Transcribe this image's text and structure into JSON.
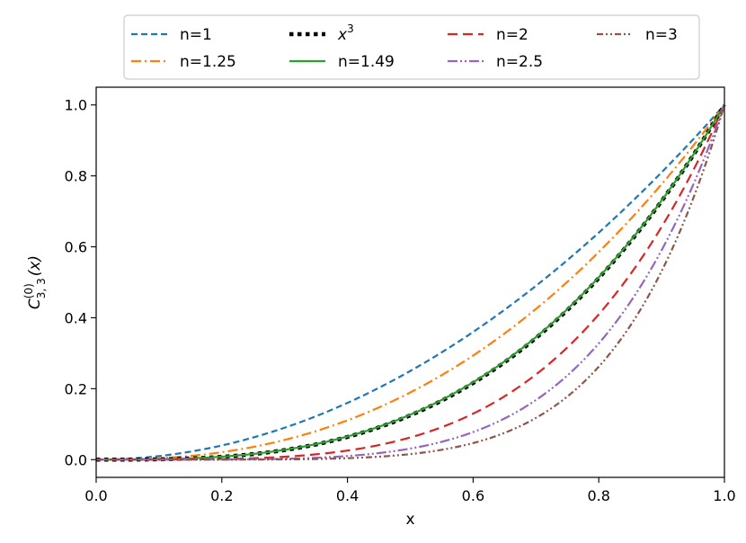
{
  "chart_data": {
    "type": "line",
    "title": "",
    "xlabel": "x",
    "ylabel_main": "C",
    "ylabel_sup": "(0)",
    "ylabel_sub": "3, 3",
    "ylabel_arg": "(x)",
    "xlim": [
      0,
      1
    ],
    "ylim": [
      -0.05,
      1.05
    ],
    "xticks": [
      0.0,
      0.2,
      0.4,
      0.6,
      0.8,
      1.0
    ],
    "xtick_labels": [
      "0.0",
      "0.2",
      "0.4",
      "0.6",
      "0.8",
      "1.0"
    ],
    "yticks": [
      0.0,
      0.2,
      0.4,
      0.6,
      0.8,
      1.0
    ],
    "ytick_labels": [
      "0.0",
      "0.2",
      "0.4",
      "0.6",
      "0.8",
      "1.0"
    ],
    "legend_position": "top-center, outside",
    "series": [
      {
        "name": "n=1",
        "label": "n=1",
        "color": "#1f77b4",
        "style": "dashed",
        "exponent": 2.0
      },
      {
        "name": "n=1.25",
        "label": "n=1.25",
        "color": "#ff7f0e",
        "style": "dashdot",
        "exponent": 2.4
      },
      {
        "name": "x^3",
        "label_base": "x",
        "label_sup": "3",
        "color": "#000000",
        "style": "dotted-thick",
        "exponent": 3.0
      },
      {
        "name": "n=1.49",
        "label": "n=1.49",
        "color": "#2ca02c",
        "style": "solid",
        "exponent": 2.98
      },
      {
        "name": "n=2",
        "label": "n=2",
        "color": "#d62728",
        "style": "longdash",
        "exponent": 4.0
      },
      {
        "name": "n=2.5",
        "label": "n=2.5",
        "color": "#9467bd",
        "style": "dashdotdot",
        "exponent": 5.0
      },
      {
        "name": "n=3",
        "label": "n=3",
        "color": "#8c564b",
        "style": "dashdotdot-dense",
        "exponent": 6.0
      }
    ]
  }
}
